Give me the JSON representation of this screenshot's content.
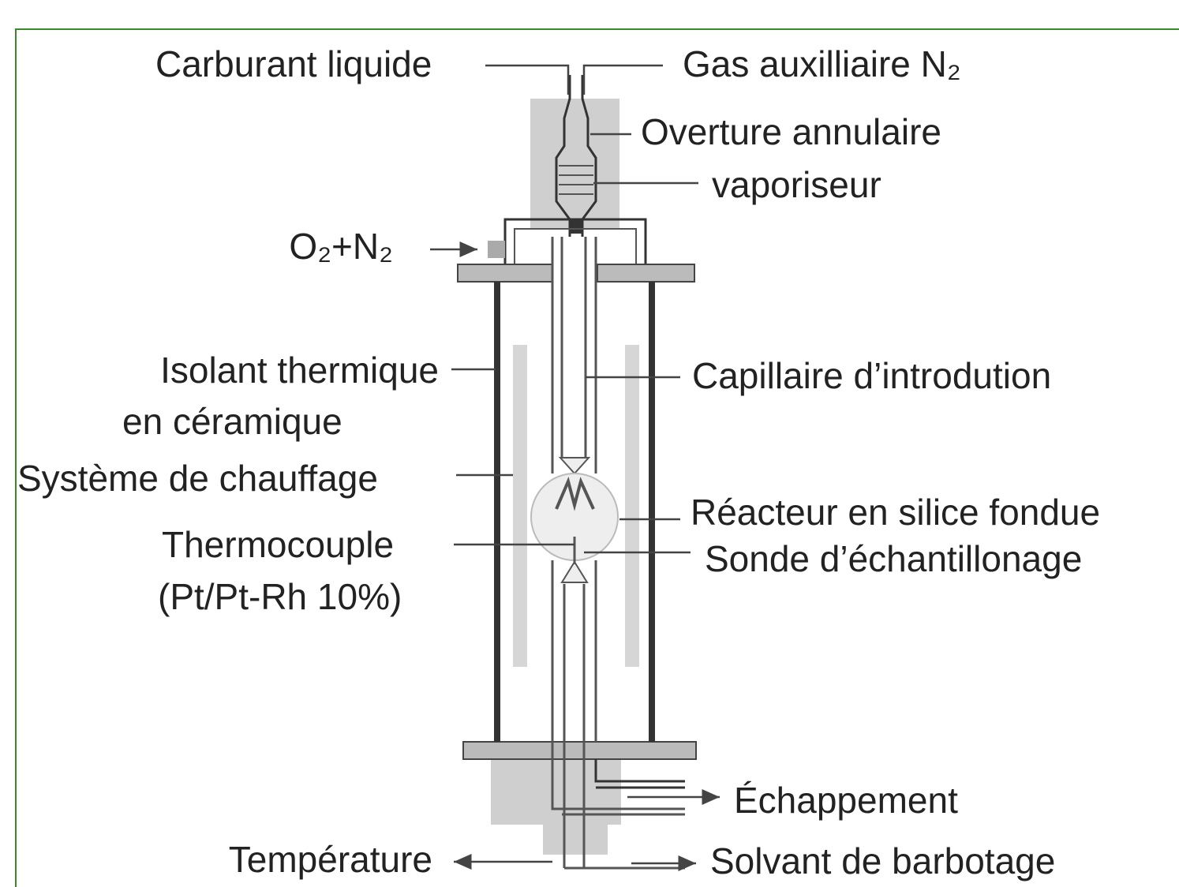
{
  "labels": {
    "fuel": "Carburant liquide",
    "aux_gas": "Gas auxilliaire N₂",
    "annular": "Overture annulaire",
    "vaporizer": "vaporiseur",
    "oxidizer": "O₂+N₂",
    "insulation_1": "Isolant thermique",
    "insulation_2": "en céramique",
    "heating": "Système de chauffage",
    "thermocouple_1": "Thermocouple",
    "thermocouple_2": "(Pt/Pt-Rh 10%)",
    "capillary": "Capillaire d’introdution",
    "reactor": "Réacteur en silice fondue",
    "probe": "Sonde d’échantillonage",
    "exhaust": "Échappement",
    "temperature": "Température",
    "solvent": "Solvant de barbotage"
  }
}
